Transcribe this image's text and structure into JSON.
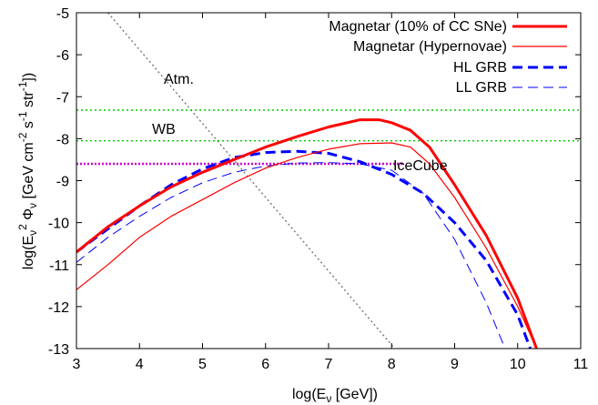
{
  "chart_data": {
    "type": "line",
    "xlabel": "log(Eν [GeV])",
    "ylabel": "log(Eν² Φν [GeV cm⁻² s⁻¹ str⁻¹])",
    "xlim": [
      3,
      11
    ],
    "ylim": [
      -13,
      -5
    ],
    "xticks": [
      "3",
      "4",
      "5",
      "6",
      "7",
      "8",
      "9",
      "10",
      "11"
    ],
    "yticks": [
      "-5",
      "-6",
      "-7",
      "-8",
      "-9",
      "-10",
      "-11",
      "-12",
      "-13"
    ],
    "legend_position": "top-right",
    "series": [
      {
        "name": "Magnetar (10% of CC SNe)",
        "color": "#ff0000",
        "style": "solid-thick",
        "points": [
          [
            3,
            -10.7
          ],
          [
            3.5,
            -10.1
          ],
          [
            4,
            -9.6
          ],
          [
            4.5,
            -9.15
          ],
          [
            5,
            -8.8
          ],
          [
            5.5,
            -8.5
          ],
          [
            6,
            -8.2
          ],
          [
            6.5,
            -7.95
          ],
          [
            7,
            -7.72
          ],
          [
            7.5,
            -7.55
          ],
          [
            7.8,
            -7.55
          ],
          [
            8,
            -7.62
          ],
          [
            8.3,
            -7.8
          ],
          [
            8.6,
            -8.2
          ],
          [
            9,
            -9.1
          ],
          [
            9.5,
            -10.3
          ],
          [
            10,
            -11.8
          ],
          [
            10.3,
            -13
          ]
        ]
      },
      {
        "name": "Magnetar (Hypernovae)",
        "color": "#ff0000",
        "style": "solid-thin",
        "points": [
          [
            3,
            -11.6
          ],
          [
            3.5,
            -11
          ],
          [
            4,
            -10.35
          ],
          [
            4.5,
            -9.85
          ],
          [
            5,
            -9.45
          ],
          [
            5.5,
            -9.05
          ],
          [
            6,
            -8.7
          ],
          [
            6.5,
            -8.45
          ],
          [
            7,
            -8.25
          ],
          [
            7.5,
            -8.12
          ],
          [
            8,
            -8.1
          ],
          [
            8.3,
            -8.2
          ],
          [
            8.6,
            -8.6
          ],
          [
            9,
            -9.4
          ],
          [
            9.5,
            -10.6
          ],
          [
            10,
            -12
          ],
          [
            10.3,
            -13
          ]
        ]
      },
      {
        "name": "HL GRB",
        "color": "#0000ff",
        "style": "dashed-thick",
        "points": [
          [
            3,
            -10.7
          ],
          [
            3.5,
            -10.15
          ],
          [
            4,
            -9.6
          ],
          [
            4.5,
            -9.1
          ],
          [
            5,
            -8.72
          ],
          [
            5.5,
            -8.45
          ],
          [
            6,
            -8.33
          ],
          [
            6.5,
            -8.3
          ],
          [
            7,
            -8.35
          ],
          [
            7.5,
            -8.55
          ],
          [
            8,
            -8.85
          ],
          [
            8.5,
            -9.3
          ],
          [
            9,
            -10
          ],
          [
            9.5,
            -10.9
          ],
          [
            10,
            -12.2
          ],
          [
            10.2,
            -13
          ]
        ]
      },
      {
        "name": "LL GRB",
        "color": "#0000ff",
        "style": "dashed-thin",
        "points": [
          [
            3,
            -10.95
          ],
          [
            3.5,
            -10.35
          ],
          [
            4,
            -9.85
          ],
          [
            4.5,
            -9.4
          ],
          [
            5,
            -9.05
          ],
          [
            5.5,
            -8.8
          ],
          [
            6,
            -8.65
          ],
          [
            6.5,
            -8.58
          ],
          [
            7,
            -8.57
          ],
          [
            7.5,
            -8.6
          ],
          [
            8,
            -8.75
          ],
          [
            8.5,
            -9.3
          ],
          [
            9,
            -10.4
          ],
          [
            9.5,
            -11.9
          ],
          [
            9.8,
            -13
          ]
        ]
      }
    ],
    "reference_lines": [
      {
        "label": "Atm.",
        "color": "#777777",
        "style": "dotted",
        "points": [
          [
            3.5,
            -5
          ],
          [
            8.05,
            -13
          ]
        ]
      },
      {
        "label": "WB",
        "color": "#00cc00",
        "style": "dotted",
        "points": [
          [
            3,
            -7.32
          ],
          [
            11,
            -7.32
          ]
        ]
      },
      {
        "label": "",
        "color": "#00cc00",
        "style": "dotted",
        "points": [
          [
            3,
            -8.05
          ],
          [
            11,
            -8.05
          ]
        ]
      },
      {
        "label": "IceCube",
        "color": "#cc00cc",
        "style": "dotted-thick",
        "points": [
          [
            3,
            -8.6
          ],
          [
            8.2,
            -8.6
          ]
        ]
      }
    ]
  }
}
